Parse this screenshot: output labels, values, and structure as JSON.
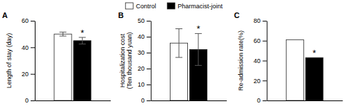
{
  "chart_data": [
    {
      "type": "bar",
      "title": "A",
      "y_label": "Length of stay (day)",
      "categories": [
        null
      ],
      "tick_labels": "y",
      "legend": "top",
      "ylim": [
        0,
        60
      ],
      "yticks": [
        0,
        20,
        40,
        60
      ],
      "series": [
        {
          "name": "Control",
          "color": "white",
          "values": [
            50
          ],
          "errors": [
            1.5
          ]
        },
        {
          "name": "Pharmacist-joint",
          "color": "black",
          "values": [
            45
          ],
          "errors": [
            2.5
          ],
          "annotation": "*"
        }
      ]
    },
    {
      "type": "bar",
      "title": "B",
      "y_label": "Hospitalization cost\n(Ten thousand yuan)",
      "categories": [
        null
      ],
      "tick_labels": "y",
      "ylim": [
        0,
        50
      ],
      "yticks": [
        0,
        10,
        20,
        30,
        40,
        50
      ],
      "series": [
        {
          "name": "Control",
          "color": "white",
          "values": [
            36
          ],
          "errors": [
            9
          ]
        },
        {
          "name": "Pharmacist-joint",
          "color": "black",
          "values": [
            32
          ],
          "errors": [
            10
          ],
          "annotation": "*"
        }
      ]
    },
    {
      "type": "bar",
      "title": "C",
      "y_label": "Re-admission rate(%)",
      "categories": [
        null
      ],
      "tick_labels": "y",
      "ylim": [
        0,
        80
      ],
      "yticks": [
        0,
        20,
        40,
        60,
        80
      ],
      "series": [
        {
          "name": "Control",
          "color": "white",
          "values": [
            61
          ],
          "errors": [
            0
          ]
        },
        {
          "name": "Pharmacist-joint",
          "color": "black",
          "values": [
            43
          ],
          "errors": [
            0
          ],
          "annotation": "*"
        }
      ]
    }
  ]
}
